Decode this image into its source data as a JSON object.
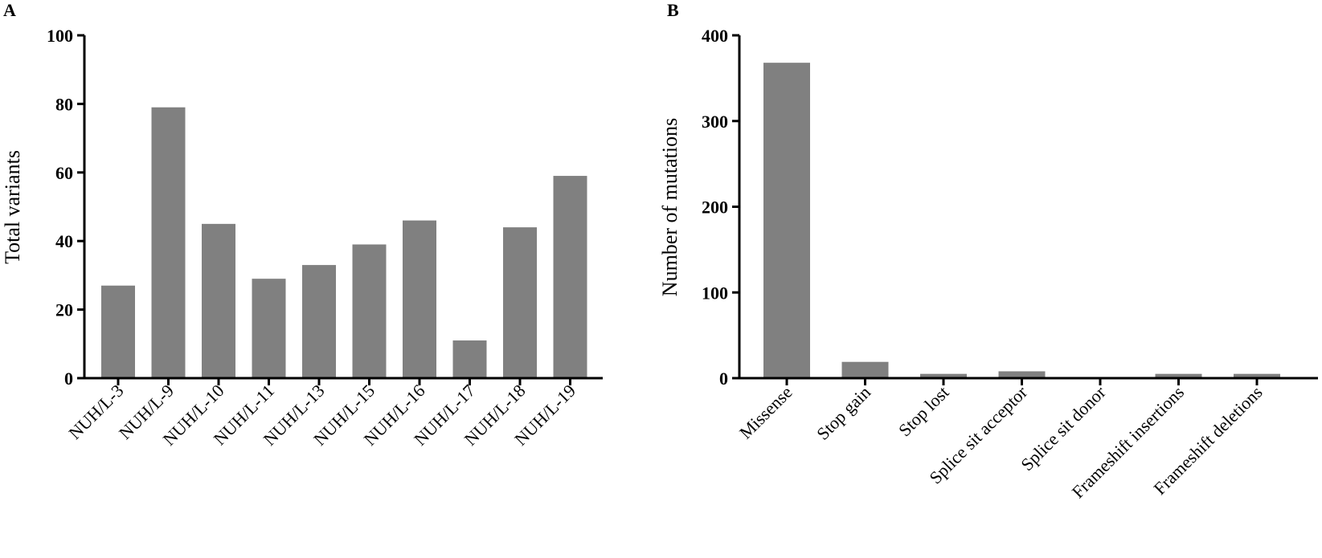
{
  "chart_data": [
    {
      "panel": "A",
      "type": "bar",
      "ylabel": "Total variants",
      "xlabel": "",
      "ylim": [
        0,
        100
      ],
      "yticks": [
        0,
        20,
        40,
        60,
        80,
        100
      ],
      "categories": [
        "NUH/L-3",
        "NUH/L-9",
        "NUH/L-10",
        "NUH/L-11",
        "NUH/L-13",
        "NUH/L-15",
        "NUH/L-16",
        "NUH/L-17",
        "NUH/L-18",
        "NUH/L-19"
      ],
      "values": [
        27,
        79,
        45,
        29,
        33,
        39,
        46,
        11,
        44,
        59
      ],
      "color": "#808080",
      "grid": false
    },
    {
      "panel": "B",
      "type": "bar",
      "ylabel": "Number of mutations",
      "xlabel": "",
      "ylim": [
        0,
        400
      ],
      "yticks": [
        0,
        100,
        200,
        300,
        400
      ],
      "categories": [
        "Missense",
        "Stop gain",
        "Stop lost",
        "Splice sit acceptor",
        "Splice sit donor",
        "Frameshift  insertions",
        "Frameshift  deletions"
      ],
      "values": [
        368,
        19,
        5,
        8,
        0,
        5,
        5
      ],
      "color": "#808080",
      "grid": false
    }
  ]
}
